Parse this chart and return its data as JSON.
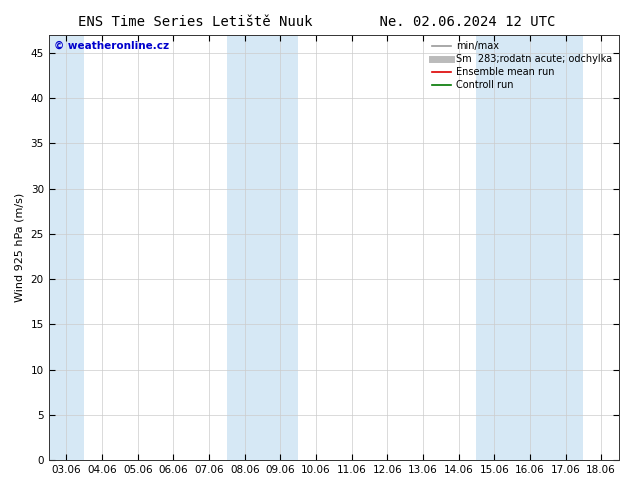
{
  "title": "ENS Time Series Letiště Nuuk        Ne. 02.06.2024 12 UTC",
  "ylabel": "Wind 925 hPa (m/s)",
  "xlim_dates": [
    "03.06",
    "04.06",
    "05.06",
    "06.06",
    "07.06",
    "08.06",
    "09.06",
    "10.06",
    "11.06",
    "12.06",
    "13.06",
    "14.06",
    "15.06",
    "16.06",
    "17.06",
    "18.06"
  ],
  "ylim": [
    0,
    47
  ],
  "yticks": [
    0,
    5,
    10,
    15,
    20,
    25,
    30,
    35,
    40,
    45
  ],
  "shaded_col_indices": [
    0,
    5,
    6,
    12,
    13,
    14
  ],
  "band_color": "#d6e8f5",
  "background_color": "#ffffff",
  "plot_bg_color": "#ffffff",
  "watermark": "© weatheronline.cz",
  "watermark_color": "#0000cc",
  "legend_entries": [
    {
      "label": "min/max",
      "color": "#999999",
      "lw": 1.2
    },
    {
      "label": "Sm  283;rodatn acute; odchylka",
      "color": "#bbbbbb",
      "lw": 5
    },
    {
      "label": "Ensemble mean run",
      "color": "#dd0000",
      "lw": 1.2
    },
    {
      "label": "Controll run",
      "color": "#007700",
      "lw": 1.2
    }
  ],
  "title_fontsize": 10,
  "axis_label_fontsize": 8,
  "tick_fontsize": 7.5,
  "legend_fontsize": 7,
  "grid_color": "#cccccc",
  "spine_color": "#333333"
}
